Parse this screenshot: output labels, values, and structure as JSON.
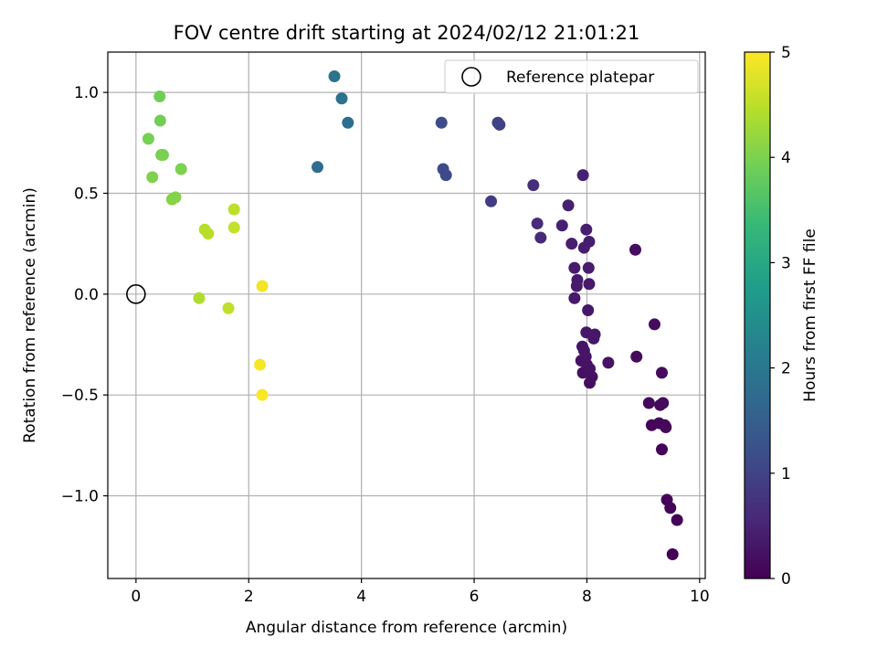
{
  "chart_data": {
    "type": "scatter",
    "title": "FOV centre drift starting at 2024/02/12 21:01:21",
    "xlabel": "Angular distance from reference (arcmin)",
    "ylabel": "Rotation from reference (arcmin)",
    "xlim": [
      -0.5,
      10.1
    ],
    "ylim": [
      -1.41,
      1.2
    ],
    "xticks": [
      0,
      2,
      4,
      6,
      8,
      10
    ],
    "xtick_labels": [
      "0",
      "2",
      "4",
      "6",
      "8",
      "10"
    ],
    "yticks": [
      -1.0,
      -0.5,
      0.0,
      0.5,
      1.0
    ],
    "ytick_labels": [
      "−1.0",
      "−0.5",
      "0.0",
      "0.5",
      "1.0"
    ],
    "grid": true,
    "legend": {
      "label": "Reference platepar",
      "position": "top-right"
    },
    "reference_point": {
      "x": 0,
      "y": 0
    },
    "colorbar": {
      "label": "Hours from first FF file",
      "range": [
        0,
        5
      ],
      "ticks": [
        0,
        1,
        2,
        3,
        4,
        5
      ],
      "tick_labels": [
        "0",
        "1",
        "2",
        "3",
        "4",
        "5"
      ],
      "colormap": "viridis",
      "stops": [
        "#440154",
        "#482878",
        "#3e4a89",
        "#31688e",
        "#26828e",
        "#1f9e89",
        "#35b779",
        "#6ece58",
        "#b5de2b",
        "#fde725"
      ]
    },
    "points": [
      {
        "x": 9.52,
        "y": -1.29,
        "c": 0.02
      },
      {
        "x": 9.6,
        "y": -1.12,
        "c": 0.03
      },
      {
        "x": 9.48,
        "y": -1.06,
        "c": 0.04
      },
      {
        "x": 9.42,
        "y": -1.02,
        "c": 0.05
      },
      {
        "x": 9.33,
        "y": -0.77,
        "c": 0.06
      },
      {
        "x": 9.15,
        "y": -0.65,
        "c": 0.07
      },
      {
        "x": 9.28,
        "y": -0.64,
        "c": 0.08
      },
      {
        "x": 9.38,
        "y": -0.65,
        "c": 0.09
      },
      {
        "x": 9.4,
        "y": -0.66,
        "c": 0.1
      },
      {
        "x": 9.1,
        "y": -0.54,
        "c": 0.11
      },
      {
        "x": 9.3,
        "y": -0.55,
        "c": 0.12
      },
      {
        "x": 9.35,
        "y": -0.54,
        "c": 0.13
      },
      {
        "x": 9.33,
        "y": -0.39,
        "c": 0.14
      },
      {
        "x": 8.88,
        "y": -0.31,
        "c": 0.15
      },
      {
        "x": 9.2,
        "y": -0.15,
        "c": 0.16
      },
      {
        "x": 8.86,
        "y": 0.22,
        "c": 0.17
      },
      {
        "x": 8.05,
        "y": -0.44,
        "c": 0.2
      },
      {
        "x": 8.09,
        "y": -0.41,
        "c": 0.21
      },
      {
        "x": 7.93,
        "y": -0.39,
        "c": 0.22
      },
      {
        "x": 8.05,
        "y": -0.37,
        "c": 0.23
      },
      {
        "x": 7.9,
        "y": -0.33,
        "c": 0.24
      },
      {
        "x": 8.0,
        "y": -0.35,
        "c": 0.25
      },
      {
        "x": 8.38,
        "y": -0.34,
        "c": 0.26
      },
      {
        "x": 7.98,
        "y": -0.31,
        "c": 0.27
      },
      {
        "x": 7.95,
        "y": -0.28,
        "c": 0.28
      },
      {
        "x": 7.92,
        "y": -0.26,
        "c": 0.29
      },
      {
        "x": 8.12,
        "y": -0.22,
        "c": 0.3
      },
      {
        "x": 8.14,
        "y": -0.2,
        "c": 0.31
      },
      {
        "x": 7.99,
        "y": -0.19,
        "c": 0.32
      },
      {
        "x": 8.02,
        "y": -0.08,
        "c": 0.33
      },
      {
        "x": 7.78,
        "y": -0.02,
        "c": 0.34
      },
      {
        "x": 7.82,
        "y": 0.04,
        "c": 0.35
      },
      {
        "x": 8.04,
        "y": 0.05,
        "c": 0.36
      },
      {
        "x": 7.83,
        "y": 0.07,
        "c": 0.37
      },
      {
        "x": 7.78,
        "y": 0.13,
        "c": 0.38
      },
      {
        "x": 8.03,
        "y": 0.13,
        "c": 0.39
      },
      {
        "x": 7.95,
        "y": 0.23,
        "c": 0.4
      },
      {
        "x": 7.73,
        "y": 0.25,
        "c": 0.41
      },
      {
        "x": 8.04,
        "y": 0.26,
        "c": 0.42
      },
      {
        "x": 7.99,
        "y": 0.32,
        "c": 0.43
      },
      {
        "x": 7.56,
        "y": 0.34,
        "c": 0.44
      },
      {
        "x": 7.67,
        "y": 0.44,
        "c": 0.45
      },
      {
        "x": 7.93,
        "y": 0.59,
        "c": 0.46
      },
      {
        "x": 7.18,
        "y": 0.28,
        "c": 0.6
      },
      {
        "x": 7.12,
        "y": 0.35,
        "c": 0.62
      },
      {
        "x": 7.05,
        "y": 0.54,
        "c": 0.65
      },
      {
        "x": 6.3,
        "y": 0.46,
        "c": 0.9
      },
      {
        "x": 6.45,
        "y": 0.84,
        "c": 0.95
      },
      {
        "x": 6.42,
        "y": 0.85,
        "c": 0.97
      },
      {
        "x": 5.5,
        "y": 0.59,
        "c": 1.1
      },
      {
        "x": 5.45,
        "y": 0.62,
        "c": 1.12
      },
      {
        "x": 5.42,
        "y": 0.85,
        "c": 1.15
      },
      {
        "x": 3.22,
        "y": 0.63,
        "c": 1.75
      },
      {
        "x": 3.76,
        "y": 0.85,
        "c": 1.8
      },
      {
        "x": 3.65,
        "y": 0.97,
        "c": 1.85
      },
      {
        "x": 3.52,
        "y": 1.08,
        "c": 1.9
      },
      {
        "x": 0.42,
        "y": 0.98,
        "c": 3.9
      },
      {
        "x": 0.43,
        "y": 0.86,
        "c": 3.92
      },
      {
        "x": 0.22,
        "y": 0.77,
        "c": 3.95
      },
      {
        "x": 0.45,
        "y": 0.69,
        "c": 3.97
      },
      {
        "x": 0.48,
        "y": 0.69,
        "c": 3.98
      },
      {
        "x": 0.8,
        "y": 0.62,
        "c": 4.0
      },
      {
        "x": 0.29,
        "y": 0.58,
        "c": 4.02
      },
      {
        "x": 0.7,
        "y": 0.48,
        "c": 4.05
      },
      {
        "x": 0.64,
        "y": 0.47,
        "c": 4.07
      },
      {
        "x": 1.74,
        "y": 0.42,
        "c": 4.5
      },
      {
        "x": 1.74,
        "y": 0.33,
        "c": 4.55
      },
      {
        "x": 1.22,
        "y": 0.32,
        "c": 4.45
      },
      {
        "x": 1.28,
        "y": 0.3,
        "c": 4.47
      },
      {
        "x": 1.12,
        "y": -0.02,
        "c": 4.4
      },
      {
        "x": 1.64,
        "y": -0.07,
        "c": 4.52
      },
      {
        "x": 2.24,
        "y": 0.04,
        "c": 4.9
      },
      {
        "x": 2.2,
        "y": -0.35,
        "c": 4.95
      },
      {
        "x": 2.24,
        "y": -0.5,
        "c": 4.98
      }
    ]
  }
}
